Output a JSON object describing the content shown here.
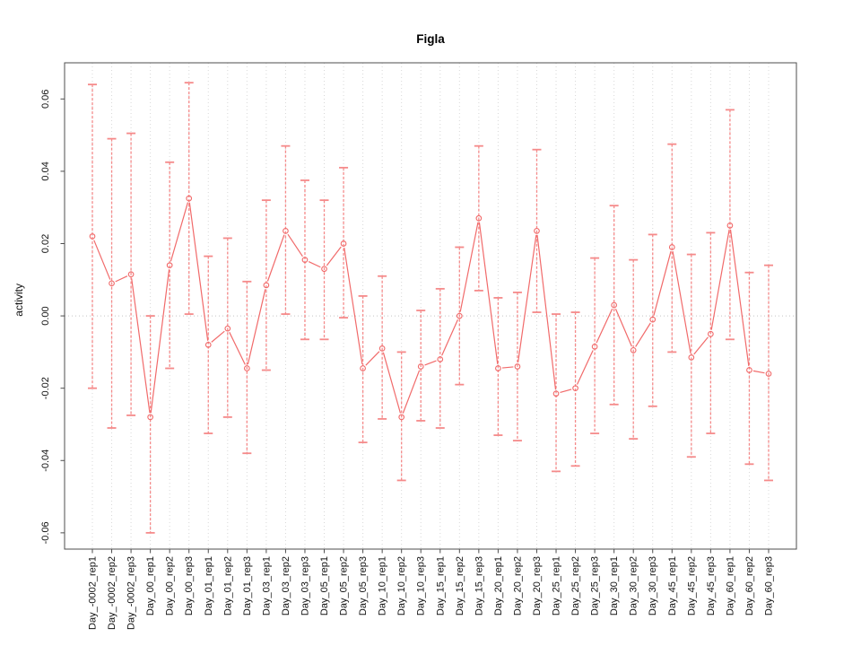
{
  "page": {
    "background": "#ffffff"
  },
  "chart_data": {
    "type": "scatter",
    "subtype": "points-with-error-bars-connected-line",
    "title": "Figla",
    "xlabel": "",
    "ylabel": "activity",
    "legend": "none",
    "grid": "vertical dotted gridline at every category; dotted horizontal line at y=0",
    "marker": "open-circle",
    "tick_label_rotation": "vertical",
    "ylim": [
      -0.0645,
      0.07
    ],
    "y_ticks": [
      -0.06,
      -0.04,
      -0.02,
      0,
      0.02,
      0.04,
      0.06
    ],
    "categories": [
      "Day_-0002_rep1",
      "Day_-0002_rep2",
      "Day_-0002_rep3",
      "Day_00_rep1",
      "Day_00_rep2",
      "Day_00_rep3",
      "Day_01_rep1",
      "Day_01_rep2",
      "Day_01_rep3",
      "Day_03_rep1",
      "Day_03_rep2",
      "Day_03_rep3",
      "Day_05_rep1",
      "Day_05_rep2",
      "Day_05_rep3",
      "Day_10_rep1",
      "Day_10_rep2",
      "Day_10_rep3",
      "Day_15_rep1",
      "Day_15_rep2",
      "Day_15_rep3",
      "Day_20_rep1",
      "Day_20_rep2",
      "Day_20_rep3",
      "Day_25_rep1",
      "Day_25_rep2",
      "Day_25_rep3",
      "Day_30_rep1",
      "Day_30_rep2",
      "Day_30_rep3",
      "Day_45_rep1",
      "Day_45_rep2",
      "Day_45_rep3",
      "Day_60_rep1",
      "Day_60_rep2",
      "Day_60_rep3"
    ],
    "series": [
      {
        "name": "activity",
        "center": [
          0.022,
          0.009,
          0.0115,
          -0.028,
          0.014,
          0.0325,
          -0.008,
          -0.0035,
          -0.0145,
          0.0085,
          0.0235,
          0.0155,
          0.013,
          0.02,
          -0.0145,
          -0.009,
          -0.028,
          -0.014,
          -0.012,
          0.0,
          0.027,
          -0.0145,
          -0.014,
          0.0235,
          -0.0215,
          -0.02,
          -0.0085,
          0.003,
          -0.0095,
          -0.001,
          0.019,
          -0.0115,
          -0.005,
          0.025,
          -0.015,
          -0.016
        ],
        "upper": [
          0.064,
          0.049,
          0.0505,
          0.0,
          0.0425,
          0.0645,
          0.0165,
          0.0215,
          0.0095,
          0.032,
          0.047,
          0.0375,
          0.032,
          0.041,
          0.0055,
          0.011,
          -0.01,
          0.0015,
          0.0075,
          0.019,
          0.047,
          0.005,
          0.0065,
          0.046,
          0.0005,
          0.001,
          0.016,
          0.0305,
          0.0155,
          0.0225,
          0.0475,
          0.017,
          0.023,
          0.057,
          0.012,
          0.014
        ],
        "lower": [
          -0.02,
          -0.031,
          -0.0275,
          -0.06,
          -0.0145,
          0.0005,
          -0.0325,
          -0.028,
          -0.038,
          -0.015,
          0.0005,
          -0.0065,
          -0.0065,
          -0.0005,
          -0.035,
          -0.0285,
          -0.0455,
          -0.029,
          -0.031,
          -0.019,
          0.007,
          -0.033,
          -0.0345,
          0.001,
          -0.043,
          -0.0415,
          -0.0325,
          -0.0245,
          -0.034,
          -0.025,
          -0.01,
          -0.039,
          -0.0325,
          -0.0065,
          -0.041,
          -0.0455
        ]
      }
    ],
    "colors": {
      "series": "#f16a6a",
      "error_bar": "#f58a8a",
      "grid": "#d8d8d8",
      "zero_line": "#c4c4c4",
      "axis": "#4d4d4d",
      "text": "#111111"
    }
  }
}
